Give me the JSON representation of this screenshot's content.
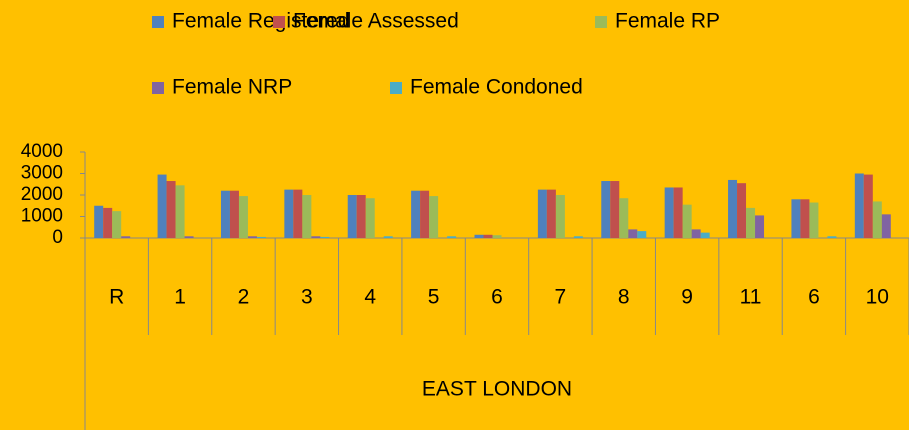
{
  "chart_data": {
    "type": "bar",
    "categories": [
      "R",
      "1",
      "2",
      "3",
      "4",
      "5",
      "6",
      "7",
      "8",
      "9",
      "11",
      "6",
      "10"
    ],
    "x_group": "EAST LONDON",
    "series": [
      {
        "name": "Female Registered",
        "color": "#4F81BD",
        "values": [
          1500,
          2950,
          2200,
          2250,
          2000,
          2200,
          150,
          2250,
          2650,
          2350,
          2700,
          1800,
          3000
        ]
      },
      {
        "name": "Female Assessed",
        "color": "#C0504D",
        "values": [
          1400,
          2650,
          2200,
          2250,
          2000,
          2200,
          150,
          2250,
          2650,
          2350,
          2550,
          1800,
          2950
        ]
      },
      {
        "name": "Female RP",
        "color": "#9BBB59",
        "values": [
          1250,
          2450,
          1950,
          2000,
          1850,
          1950,
          130,
          2000,
          1850,
          1550,
          1400,
          1650,
          1700
        ]
      },
      {
        "name": "Female NRP",
        "color": "#8064A2",
        "values": [
          80,
          80,
          80,
          80,
          0,
          0,
          0,
          0,
          400,
          400,
          1050,
          0,
          1100
        ]
      },
      {
        "name": "Female Condoned",
        "color": "#4BACC6",
        "values": [
          0,
          0,
          50,
          50,
          80,
          80,
          0,
          80,
          320,
          250,
          0,
          80,
          0
        ]
      }
    ],
    "ylim": [
      0,
      4000
    ],
    "yticks": [
      0,
      1000,
      2000,
      3000,
      4000
    ],
    "legend": "top"
  }
}
